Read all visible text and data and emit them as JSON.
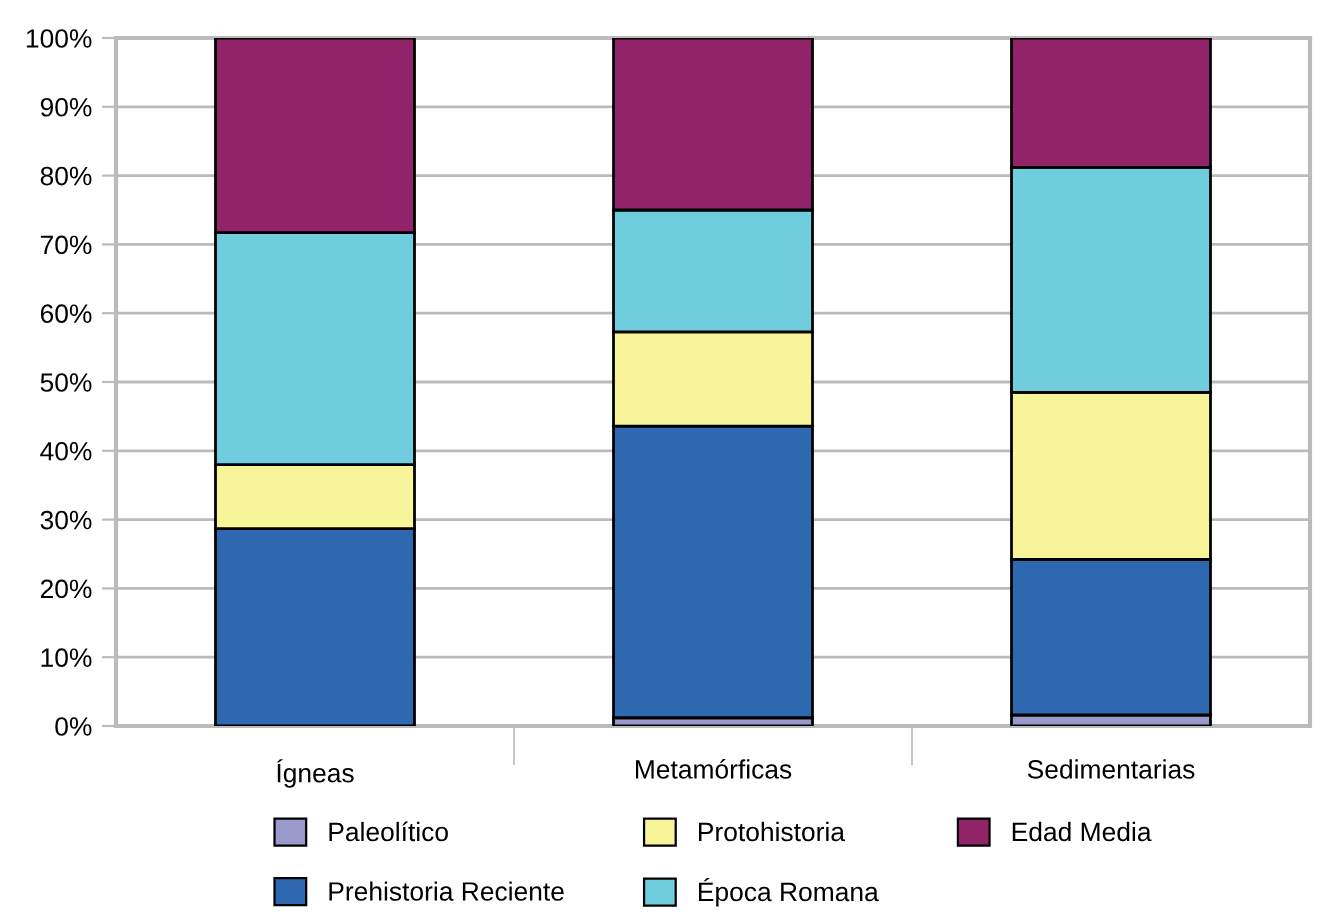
{
  "chart_data": {
    "type": "bar",
    "stacked": true,
    "categories": [
      "Ígneas",
      "Metamórficas",
      "Sedimentarias"
    ],
    "series": [
      {
        "name": "Paleolítico",
        "color": "#9999cc",
        "values": [
          0,
          1.2,
          1.6
        ]
      },
      {
        "name": "Prehistoria Reciente",
        "color": "#2d68b0",
        "values": [
          28.7,
          42.4,
          22.6
        ]
      },
      {
        "name": "Protohistoria",
        "color": "#f8f49a",
        "values": [
          9.3,
          13.7,
          24.3
        ]
      },
      {
        "name": "Época Romana",
        "color": "#70cddd",
        "values": [
          33.7,
          17.7,
          32.7
        ]
      },
      {
        "name": "Edad Media",
        "color": "#912368",
        "values": [
          28.3,
          25.0,
          18.8
        ]
      }
    ],
    "ylim": [
      0,
      100
    ],
    "yticks": [
      {
        "value": 0,
        "label": "0%"
      },
      {
        "value": 10,
        "label": "10%"
      },
      {
        "value": 20,
        "label": "20%"
      },
      {
        "value": 30,
        "label": "30%"
      },
      {
        "value": 40,
        "label": "40%"
      },
      {
        "value": 50,
        "label": "50%"
      },
      {
        "value": 60,
        "label": "60%"
      },
      {
        "value": 70,
        "label": "70%"
      },
      {
        "value": 80,
        "label": "80%"
      },
      {
        "value": 90,
        "label": "90%"
      },
      {
        "value": 100,
        "label": "100%"
      }
    ],
    "grid": "y",
    "legend": "bottom"
  }
}
